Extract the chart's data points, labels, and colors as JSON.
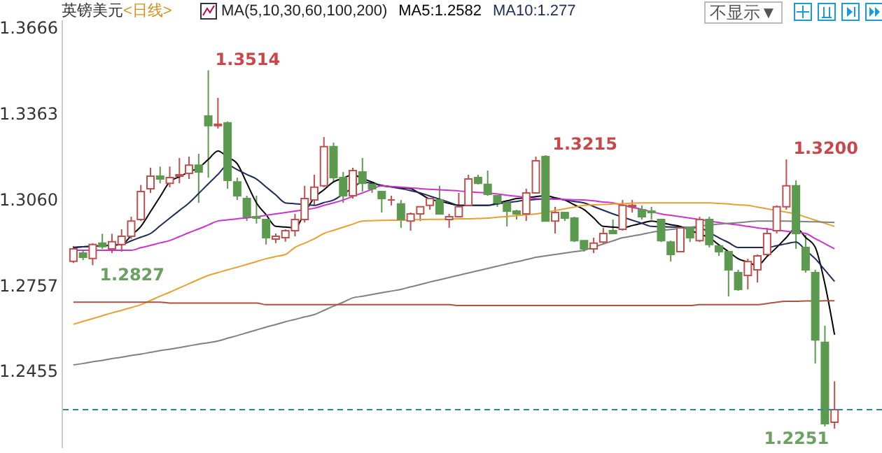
{
  "chart_data": {
    "type": "candlestick",
    "title": "英镑美元",
    "subtitle": "<日线>",
    "categories": [
      null,
      null,
      null,
      null,
      null,
      null,
      null,
      null,
      null,
      null,
      null,
      null,
      null,
      null,
      null,
      null,
      null,
      null,
      null,
      null,
      null,
      null,
      null,
      null,
      null,
      null,
      null,
      null,
      null,
      null,
      null,
      null,
      null,
      null,
      null,
      null,
      null,
      null,
      null,
      null,
      null,
      null,
      null,
      null,
      null,
      null,
      null,
      null,
      null,
      null,
      null,
      null,
      null,
      null,
      null,
      null,
      null,
      null,
      null,
      null,
      null,
      null,
      null,
      null,
      null,
      null,
      null,
      null,
      null,
      null,
      null,
      null,
      null,
      null,
      null,
      null,
      null,
      null,
      null,
      null
    ],
    "ohlc": [
      [
        1.2841,
        1.2895,
        1.2835,
        1.2885
      ],
      [
        1.287,
        1.288,
        1.2845,
        1.2855
      ],
      [
        1.2851,
        1.2905,
        1.2827,
        1.29
      ],
      [
        1.2905,
        1.2938,
        1.2885,
        1.2893
      ],
      [
        1.2885,
        1.2938,
        1.287,
        1.291
      ],
      [
        1.29,
        1.2954,
        1.2875,
        1.2929
      ],
      [
        1.2929,
        1.2998,
        1.292,
        1.2983
      ],
      [
        1.2988,
        1.311,
        1.2983,
        1.3087
      ],
      [
        1.3097,
        1.3171,
        1.3082,
        1.3141
      ],
      [
        1.3141,
        1.3175,
        1.3116,
        1.3131
      ],
      [
        1.3116,
        1.3175,
        1.3102,
        1.3136
      ],
      [
        1.3141,
        1.3205,
        1.3116,
        1.3146
      ],
      [
        1.3151,
        1.321,
        1.3131,
        1.318
      ],
      [
        1.318,
        1.322,
        1.3047,
        1.3156
      ],
      [
        1.3353,
        1.3514,
        1.3136,
        1.3319
      ],
      [
        1.3319,
        1.3417,
        1.3309,
        1.3324
      ],
      [
        1.3329,
        1.3334,
        1.3097,
        1.3126
      ],
      [
        1.3121,
        1.3136,
        1.3057,
        1.3072
      ],
      [
        1.3062,
        1.3072,
        1.2983,
        1.2998
      ],
      [
        1.2998,
        1.3072,
        1.2974,
        1.2993
      ],
      [
        1.2988,
        1.2988,
        1.29,
        1.2924
      ],
      [
        1.2919,
        1.2939,
        1.2905,
        1.2929
      ],
      [
        1.2924,
        1.2954,
        1.291,
        1.2949
      ],
      [
        1.2949,
        1.3008,
        1.2929,
        1.2988
      ],
      [
        1.2988,
        1.3107,
        1.2978,
        1.3062
      ],
      [
        1.3057,
        1.3146,
        1.3038,
        1.3102
      ],
      [
        1.3107,
        1.3279,
        1.3102,
        1.3245
      ],
      [
        1.3245,
        1.3259,
        1.3121,
        1.3136
      ],
      [
        1.3136,
        1.3156,
        1.3047,
        1.3072
      ],
      [
        1.3072,
        1.3171,
        1.3062,
        1.3161
      ],
      [
        1.3156,
        1.3205,
        1.3087,
        1.3116
      ],
      [
        1.3112,
        1.3121,
        1.3082,
        1.3097
      ],
      [
        1.3087,
        1.3087,
        1.3013,
        1.3062
      ],
      [
        1.3057,
        1.3072,
        1.3038,
        1.3057
      ],
      [
        1.3043,
        1.3057,
        1.2959,
        1.2988
      ],
      [
        1.2983,
        1.3013,
        1.2949,
        1.3008
      ],
      [
        1.3008,
        1.3033,
        1.2983,
        1.3033
      ],
      [
        1.3038,
        1.3062,
        1.3023,
        1.3062
      ],
      [
        1.3057,
        1.3107,
        1.3008,
        1.3008
      ],
      [
        1.2988,
        1.3008,
        1.2959,
        1.2998
      ],
      [
        1.2998,
        1.3082,
        1.2998,
        1.3033
      ],
      [
        1.3038,
        1.3146,
        1.3038,
        1.3131
      ],
      [
        1.3136,
        1.3146,
        1.3112,
        1.3116
      ],
      [
        1.3112,
        1.3161,
        1.3072,
        1.3077
      ],
      [
        1.3072,
        1.3072,
        1.3033,
        1.3047
      ],
      [
        1.3047,
        1.3047,
        1.2964,
        1.3018
      ],
      [
        1.3018,
        1.3023,
        1.2988,
        1.3008
      ],
      [
        1.3008,
        1.3097,
        1.2983,
        1.3082
      ],
      [
        1.3082,
        1.321,
        1.3082,
        1.3195
      ],
      [
        1.321,
        1.3215,
        1.2983,
        1.2983
      ],
      [
        1.2983,
        1.3033,
        1.2939,
        1.3013
      ],
      [
        1.3013,
        1.3013,
        1.2983,
        1.2993
      ],
      [
        1.2993,
        1.2998,
        1.2909,
        1.2914
      ],
      [
        1.2914,
        1.2914,
        1.2875,
        1.2885
      ],
      [
        1.2885,
        1.2924,
        1.287,
        1.2905
      ],
      [
        1.2909,
        1.2959,
        1.29,
        1.2939
      ],
      [
        1.2949,
        1.2988,
        1.2939,
        1.2939
      ],
      [
        1.2954,
        1.3057,
        1.2949,
        1.3038
      ],
      [
        1.3033,
        1.3057,
        1.3013,
        1.3038
      ],
      [
        1.3023,
        1.3038,
        1.2988,
        1.2998
      ],
      [
        1.3018,
        1.3033,
        1.2988,
        1.3013
      ],
      [
        1.2988,
        1.2988,
        1.2909,
        1.2914
      ],
      [
        1.2909,
        1.2914,
        1.284,
        1.2865
      ],
      [
        1.2875,
        1.2964,
        1.2875,
        1.2959
      ],
      [
        1.2959,
        1.2964,
        1.2909,
        1.2924
      ],
      [
        1.2914,
        1.2998,
        1.2909,
        1.2988
      ],
      [
        1.2988,
        1.2998,
        1.289,
        1.29
      ],
      [
        1.2895,
        1.2895,
        1.286,
        1.2875
      ],
      [
        1.2875,
        1.2875,
        1.2717,
        1.2811
      ],
      [
        1.2801,
        1.2811,
        1.2737,
        1.2742
      ],
      [
        1.2791,
        1.285,
        1.2742,
        1.284
      ],
      [
        1.2811,
        1.2865,
        1.2766,
        1.286
      ],
      [
        1.2865,
        1.2959,
        1.286,
        1.2939
      ],
      [
        1.2949,
        1.3038,
        1.2939,
        1.3033
      ],
      [
        1.3033,
        1.32,
        1.3023,
        1.3107
      ],
      [
        1.3107,
        1.3126,
        1.2885,
        1.2939
      ],
      [
        1.289,
        1.2934,
        1.2801,
        1.2811
      ],
      [
        1.2801,
        1.2811,
        1.2481,
        1.2564
      ],
      [
        1.2555,
        1.2614,
        1.2259,
        1.2269
      ],
      [
        1.2274,
        1.2418,
        1.2251,
        1.2318
      ]
    ],
    "colors": [
      "#c0504d",
      "#5b9a4f",
      "#c0504d",
      "#5b9a4f",
      "#c0504d",
      "#c0504d",
      "#c0504d",
      "#c0504d",
      "#c0504d",
      "#5b9a4f",
      "#c0504d",
      "#c0504d",
      "#c0504d",
      "#5b9a4f",
      "#5b9a4f",
      "#c0504d",
      "#5b9a4f",
      "#5b9a4f",
      "#5b9a4f",
      "#5b9a4f",
      "#5b9a4f",
      "#c0504d",
      "#c0504d",
      "#c0504d",
      "#c0504d",
      "#c0504d",
      "#c0504d",
      "#5b9a4f",
      "#5b9a4f",
      "#c0504d",
      "#5b9a4f",
      "#5b9a4f",
      "#5b9a4f",
      "#c0504d",
      "#5b9a4f",
      "#c0504d",
      "#c0504d",
      "#c0504d",
      "#5b9a4f",
      "#c0504d",
      "#c0504d",
      "#c0504d",
      "#5b9a4f",
      "#5b9a4f",
      "#5b9a4f",
      "#5b9a4f",
      "#5b9a4f",
      "#c0504d",
      "#c0504d",
      "#5b9a4f",
      "#c0504d",
      "#5b9a4f",
      "#5b9a4f",
      "#5b9a4f",
      "#c0504d",
      "#c0504d",
      "#5b9a4f",
      "#c0504d",
      "#c0504d",
      "#5b9a4f",
      "#5b9a4f",
      "#5b9a4f",
      "#5b9a4f",
      "#c0504d",
      "#5b9a4f",
      "#c0504d",
      "#5b9a4f",
      "#5b9a4f",
      "#5b9a4f",
      "#5b9a4f",
      "#c0504d",
      "#c0504d",
      "#c0504d",
      "#c0504d",
      "#c0504d",
      "#5b9a4f",
      "#5b9a4f",
      "#5b9a4f",
      "#5b9a4f",
      "#c0504d"
    ],
    "series": [
      {
        "type": "line",
        "color": "#000000",
        "values": [
          1.289,
          1.2892,
          1.2894,
          1.2896,
          1.2898,
          1.29,
          1.2932,
          1.2964,
          1.3016,
          1.3069,
          1.3121,
          1.3139,
          1.3156,
          1.3171,
          1.32,
          1.323,
          1.3208,
          1.3185,
          1.3116,
          1.3047,
          1.3005,
          1.2964,
          1.2962,
          1.2959,
          1.3012,
          1.3065,
          1.3093,
          1.3121,
          1.3134,
          1.3146,
          1.3133,
          1.312,
          1.3107,
          1.3104,
          1.31,
          1.3097,
          1.3079,
          1.306,
          1.3053,
          1.3045,
          1.3038,
          1.3038,
          1.3038,
          1.3038,
          1.3046,
          1.3054,
          1.3062,
          1.3065,
          1.3069,
          1.3072,
          1.3065,
          1.3057,
          1.304,
          1.3023,
          1.2994,
          1.2964,
          1.2962,
          1.2959,
          1.2967,
          1.2975,
          1.2983,
          1.2977,
          1.297,
          1.2964,
          1.2951,
          1.2937,
          1.2924,
          1.2899,
          1.2875,
          1.285,
          1.2838,
          1.2826,
          1.2858,
          1.289,
          1.2925,
          1.2959,
          1.2925,
          1.289,
          1.2761,
          1.2582
        ]
      },
      {
        "type": "line",
        "color": "#1f2a5a",
        "values": [
          1.289,
          1.2892,
          1.2894,
          1.2896,
          1.2898,
          1.29,
          1.2913,
          1.2926,
          1.2939,
          1.2966,
          1.2993,
          1.302,
          1.3047,
          1.308,
          1.3114,
          1.3147,
          1.318,
          1.3164,
          1.3147,
          1.3131,
          1.3103,
          1.3075,
          1.3047,
          1.3044,
          1.3041,
          1.3038,
          1.3048,
          1.3057,
          1.3078,
          1.31,
          1.3121,
          1.3115,
          1.3109,
          1.3103,
          1.3097,
          1.309,
          1.3082,
          1.3071,
          1.306,
          1.3049,
          1.3038,
          1.3038,
          1.3038,
          1.3038,
          1.3043,
          1.3048,
          1.3052,
          1.3057,
          1.3059,
          1.306,
          1.3062,
          1.3057,
          1.3052,
          1.3047,
          1.3034,
          1.3021,
          1.3008,
          1.2997,
          1.2986,
          1.2975,
          1.2964,
          1.2963,
          1.2962,
          1.2961,
          1.296,
          1.2959,
          1.2942,
          1.2924,
          1.2907,
          1.289,
          1.289,
          1.289,
          1.289,
          1.2896,
          1.2903,
          1.2909,
          1.288,
          1.285,
          1.281,
          1.277
        ]
      },
      {
        "type": "line",
        "color": "#cc33cc",
        "values": [
          1.288,
          1.288,
          1.288,
          1.288,
          1.288,
          1.288,
          1.288,
          1.2889,
          1.2897,
          1.2906,
          1.2914,
          1.2928,
          1.2942,
          1.2955,
          1.2969,
          1.2983,
          1.2987,
          1.2991,
          1.2994,
          1.2998,
          1.3003,
          1.3008,
          1.3013,
          1.3018,
          1.3023,
          1.3028,
          1.3038,
          1.3047,
          1.3057,
          1.307,
          1.3082,
          1.3095,
          1.3107,
          1.3105,
          1.3102,
          1.31,
          1.3097,
          1.3095,
          1.3093,
          1.3091,
          1.3089,
          1.3086,
          1.3084,
          1.3082,
          1.3078,
          1.3074,
          1.307,
          1.3066,
          1.3062,
          1.3061,
          1.306,
          1.3059,
          1.3058,
          1.3057,
          1.3054,
          1.305,
          1.3047,
          1.3039,
          1.3031,
          1.3024,
          1.3016,
          1.3008,
          1.3003,
          1.2998,
          1.2993,
          1.2988,
          1.2983,
          1.2978,
          1.2973,
          1.2969,
          1.2964,
          1.2959,
          1.2955,
          1.2951,
          1.2947,
          1.2943,
          1.2939,
          1.2921,
          1.2903,
          1.2885
        ]
      },
      {
        "type": "line",
        "color": "#e8a030",
        "values": [
          1.2619,
          1.2629,
          1.2639,
          1.2649,
          1.2659,
          1.2668,
          1.2678,
          1.2688,
          1.2703,
          1.2718,
          1.2732,
          1.2747,
          1.2762,
          1.2777,
          1.2791,
          1.2801,
          1.2811,
          1.282,
          1.283,
          1.284,
          1.285,
          1.2858,
          1.2865,
          1.289,
          1.2905,
          1.292,
          1.2939,
          1.295,
          1.2961,
          1.2972,
          1.2983,
          1.2984,
          1.2985,
          1.2986,
          1.2986,
          1.2987,
          1.2988,
          1.2989,
          1.2989,
          1.299,
          1.2991,
          1.2991,
          1.2992,
          1.2993,
          1.2996,
          1.2999,
          1.3002,
          1.3005,
          1.3008,
          1.3014,
          1.302,
          1.3026,
          1.3032,
          1.3038,
          1.304,
          1.3041,
          1.3043,
          1.3044,
          1.3046,
          1.3047,
          1.3047,
          1.3047,
          1.3047,
          1.3047,
          1.3047,
          1.3047,
          1.3047,
          1.3045,
          1.3043,
          1.304,
          1.3038,
          1.3032,
          1.3026,
          1.302,
          1.3014,
          1.3008,
          1.2997,
          1.2986,
          1.2975,
          1.2964
        ]
      },
      {
        "type": "line",
        "color": "#808080",
        "values": [
          1.2476,
          1.2481,
          1.2487,
          1.2492,
          1.2498,
          1.2503,
          1.2509,
          1.2514,
          1.252,
          1.2526,
          1.2531,
          1.2537,
          1.2543,
          1.2549,
          1.2554,
          1.256,
          1.257,
          1.2579,
          1.2589,
          1.2599,
          1.2609,
          1.2618,
          1.2628,
          1.2636,
          1.2645,
          1.2653,
          1.2668,
          1.2683,
          1.2697,
          1.2712,
          1.2718,
          1.2724,
          1.273,
          1.2736,
          1.2742,
          1.2751,
          1.2759,
          1.2768,
          1.2776,
          1.2784,
          1.2792,
          1.28,
          1.2808,
          1.2816,
          1.2824,
          1.2832,
          1.2839,
          1.2847,
          1.2855,
          1.286,
          1.2865,
          1.287,
          1.2875,
          1.288,
          1.2891,
          1.2902,
          1.2913,
          1.2924,
          1.293,
          1.2936,
          1.2943,
          1.2949,
          1.2953,
          1.2957,
          1.2961,
          1.2965,
          1.2969,
          1.2972,
          1.2975,
          1.2977,
          1.298,
          1.2983,
          1.2983,
          1.2983,
          1.2983,
          1.2982,
          1.2981,
          1.298,
          1.2979,
          1.2978
        ]
      },
      {
        "type": "line",
        "color": "#b05040",
        "values": [
          1.2697,
          1.2697,
          1.2697,
          1.2697,
          1.2697,
          1.2697,
          1.2697,
          1.2697,
          1.2697,
          1.2697,
          1.2694,
          1.2694,
          1.2694,
          1.2694,
          1.2694,
          1.2694,
          1.2694,
          1.2694,
          1.2694,
          1.2694,
          1.2688,
          1.2688,
          1.2688,
          1.2688,
          1.2688,
          1.2688,
          1.2688,
          1.2688,
          1.2688,
          1.2688,
          1.2688,
          1.2688,
          1.2688,
          1.2688,
          1.2688,
          1.2688,
          1.2688,
          1.2688,
          1.2688,
          1.2688,
          1.2685,
          1.2685,
          1.2685,
          1.2685,
          1.2685,
          1.2685,
          1.2685,
          1.2685,
          1.2685,
          1.2685,
          1.2685,
          1.2685,
          1.2685,
          1.2685,
          1.2685,
          1.2685,
          1.2685,
          1.2685,
          1.2685,
          1.2685,
          1.2685,
          1.2685,
          1.2685,
          1.2685,
          1.2685,
          1.2688,
          1.2688,
          1.2688,
          1.2688,
          1.2688,
          1.2688,
          1.2688,
          1.2692,
          1.2697,
          1.27,
          1.27,
          1.2701,
          1.2701,
          1.2702,
          1.2702
        ]
      }
    ],
    "ylim": [
      1.2185,
      1.3693
    ],
    "yticks": [
      1.2455,
      1.2757,
      {
        "value": 1.306,
        "label": "1.3060"
      },
      1.3363,
      1.3666
    ],
    "tick_labels": "y",
    "ref_lines": [
      {
        "axis": "y",
        "value": 1.2318,
        "color": "#2a8a9a",
        "line_style": "dashed"
      }
    ],
    "annotations": [
      "MA(5,10,30,60,100,200)",
      "MA5:1.2582",
      "MA10:1.277",
      "不显示▼",
      "1.3514",
      "1.2827",
      "1.3215",
      "1.3200",
      "1.2251"
    ]
  }
}
